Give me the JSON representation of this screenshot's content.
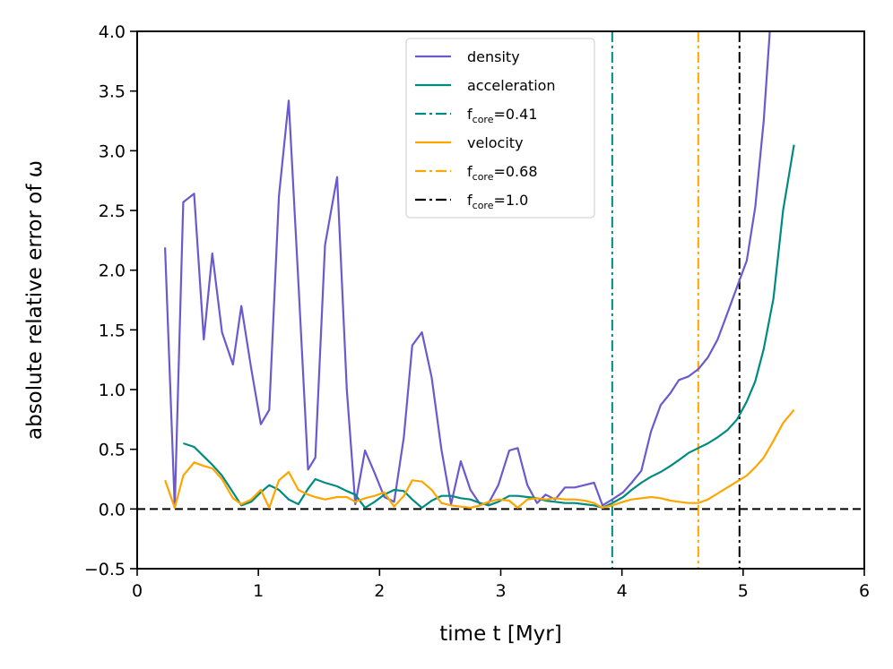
{
  "chart_data": {
    "type": "line",
    "title": "",
    "xlabel": "time t [Myr]",
    "ylabel": "absolute relative error of ω",
    "xlim": [
      0,
      6
    ],
    "ylim": [
      -0.5,
      4.0
    ],
    "xticks": [
      0,
      1,
      2,
      3,
      4,
      5,
      6
    ],
    "xtick_labels": [
      "0",
      "1",
      "2",
      "3",
      "4",
      "5",
      "6"
    ],
    "yticks": [
      -0.5,
      0.0,
      0.5,
      1.0,
      1.5,
      2.0,
      2.5,
      3.0,
      3.5,
      4.0
    ],
    "ytick_labels": [
      "−0.5",
      "0.0",
      "0.5",
      "1.0",
      "1.5",
      "2.0",
      "2.5",
      "3.0",
      "3.5",
      "4.0"
    ],
    "legend_position": "top-center",
    "series": [
      {
        "name": "density",
        "color": "#6a5acd",
        "x": [
          0.23,
          0.31,
          0.38,
          0.47,
          0.55,
          0.62,
          0.7,
          0.79,
          0.86,
          0.94,
          1.02,
          1.09,
          1.17,
          1.25,
          1.33,
          1.41,
          1.47,
          1.55,
          1.65,
          1.73,
          1.8,
          1.88,
          1.96,
          2.04,
          2.12,
          2.2,
          2.27,
          2.35,
          2.43,
          2.51,
          2.59,
          2.67,
          2.75,
          2.83,
          2.9,
          2.98,
          3.07,
          3.14,
          3.22,
          3.3,
          3.37,
          3.45,
          3.53,
          3.61,
          3.69,
          3.77,
          3.84,
          3.92,
          4.01,
          4.08,
          4.16,
          4.24,
          4.32,
          4.4,
          4.47,
          4.55,
          4.63,
          4.71,
          4.79,
          4.87,
          4.95,
          5.03,
          5.1,
          5.17,
          5.22
        ],
        "values": [
          2.19,
          0.01,
          2.57,
          2.64,
          1.42,
          2.14,
          1.48,
          1.21,
          1.7,
          1.18,
          0.71,
          0.83,
          2.62,
          3.42,
          1.9,
          0.33,
          0.43,
          2.21,
          2.78,
          1.0,
          0.04,
          0.49,
          0.3,
          0.1,
          0.06,
          0.6,
          1.37,
          1.48,
          1.1,
          0.5,
          0.04,
          0.4,
          0.16,
          0.04,
          0.05,
          0.2,
          0.49,
          0.51,
          0.2,
          0.05,
          0.12,
          0.08,
          0.18,
          0.18,
          0.2,
          0.22,
          0.03,
          0.08,
          0.14,
          0.22,
          0.32,
          0.65,
          0.87,
          0.97,
          1.08,
          1.11,
          1.17,
          1.27,
          1.42,
          1.64,
          1.86,
          2.08,
          2.53,
          3.25,
          4.0
        ]
      },
      {
        "name": "acceleration",
        "color": "#008b80",
        "x": [
          0.38,
          0.47,
          0.55,
          0.62,
          0.7,
          0.79,
          0.86,
          0.94,
          1.02,
          1.09,
          1.17,
          1.25,
          1.33,
          1.41,
          1.47,
          1.55,
          1.65,
          1.73,
          1.8,
          1.88,
          1.96,
          2.04,
          2.12,
          2.2,
          2.27,
          2.35,
          2.43,
          2.51,
          2.59,
          2.67,
          2.75,
          2.83,
          2.9,
          2.98,
          3.07,
          3.14,
          3.22,
          3.3,
          3.37,
          3.45,
          3.53,
          3.61,
          3.69,
          3.77,
          3.84,
          3.92,
          4.01,
          4.08,
          4.16,
          4.24,
          4.32,
          4.4,
          4.47,
          4.55,
          4.63,
          4.71,
          4.79,
          4.87,
          4.95,
          5.03,
          5.1,
          5.17,
          5.25,
          5.33,
          5.42
        ],
        "values": [
          0.55,
          0.52,
          0.44,
          0.37,
          0.28,
          0.14,
          0.03,
          0.06,
          0.14,
          0.2,
          0.16,
          0.08,
          0.04,
          0.17,
          0.25,
          0.22,
          0.19,
          0.15,
          0.12,
          0.01,
          0.06,
          0.12,
          0.16,
          0.15,
          0.08,
          0.01,
          0.07,
          0.11,
          0.11,
          0.09,
          0.08,
          0.05,
          0.03,
          0.06,
          0.11,
          0.11,
          0.1,
          0.09,
          0.07,
          0.06,
          0.05,
          0.05,
          0.04,
          0.03,
          0.01,
          0.05,
          0.1,
          0.16,
          0.22,
          0.27,
          0.31,
          0.36,
          0.41,
          0.47,
          0.51,
          0.55,
          0.6,
          0.66,
          0.75,
          0.9,
          1.07,
          1.34,
          1.76,
          2.5,
          3.05
        ]
      },
      {
        "name": "velocity",
        "color": "#ffa500",
        "x": [
          0.23,
          0.31,
          0.38,
          0.47,
          0.55,
          0.62,
          0.7,
          0.79,
          0.86,
          0.94,
          1.02,
          1.09,
          1.17,
          1.25,
          1.33,
          1.41,
          1.47,
          1.55,
          1.65,
          1.73,
          1.8,
          1.88,
          1.96,
          2.04,
          2.12,
          2.2,
          2.27,
          2.35,
          2.43,
          2.51,
          2.59,
          2.67,
          2.75,
          2.83,
          2.9,
          2.98,
          3.07,
          3.14,
          3.22,
          3.3,
          3.37,
          3.45,
          3.53,
          3.61,
          3.69,
          3.77,
          3.84,
          3.92,
          4.01,
          4.08,
          4.16,
          4.24,
          4.32,
          4.4,
          4.47,
          4.55,
          4.63,
          4.71,
          4.79,
          4.87,
          4.95,
          5.03,
          5.1,
          5.17,
          5.25,
          5.33,
          5.42
        ],
        "values": [
          0.24,
          0.01,
          0.28,
          0.39,
          0.36,
          0.34,
          0.25,
          0.09,
          0.04,
          0.08,
          0.16,
          0.01,
          0.24,
          0.31,
          0.16,
          0.12,
          0.1,
          0.08,
          0.1,
          0.1,
          0.06,
          0.09,
          0.11,
          0.14,
          0.02,
          0.11,
          0.24,
          0.23,
          0.16,
          0.05,
          0.03,
          0.02,
          0.01,
          0.03,
          0.06,
          0.08,
          0.07,
          0.01,
          0.08,
          0.09,
          0.08,
          0.09,
          0.08,
          0.08,
          0.07,
          0.05,
          0.01,
          0.03,
          0.06,
          0.08,
          0.09,
          0.1,
          0.09,
          0.07,
          0.06,
          0.05,
          0.05,
          0.08,
          0.13,
          0.18,
          0.23,
          0.28,
          0.35,
          0.43,
          0.57,
          0.72,
          0.83
        ]
      }
    ],
    "reference_lines": [
      {
        "orientation": "vertical",
        "x": 3.92,
        "name": "f_core=0.41",
        "color": "#008b80",
        "style": "dashdot"
      },
      {
        "orientation": "vertical",
        "x": 4.63,
        "name": "f_core=0.68",
        "color": "#ffa500",
        "style": "dashdot"
      },
      {
        "orientation": "vertical",
        "x": 4.97,
        "name": "f_core=1.0",
        "color": "#000000",
        "style": "dashdot"
      },
      {
        "orientation": "horizontal",
        "y": 0.0,
        "color": "#000000",
        "style": "dashed"
      }
    ],
    "legend": [
      {
        "label": "density",
        "color": "#6a5acd",
        "style": "solid"
      },
      {
        "label": "acceleration",
        "color": "#008b80",
        "style": "solid"
      },
      {
        "label": "f",
        "sub": "core",
        "value": "=0.41",
        "color": "#008b80",
        "style": "dashdot"
      },
      {
        "label": "velocity",
        "color": "#ffa500",
        "style": "solid"
      },
      {
        "label": "f",
        "sub": "core",
        "value": "=0.68",
        "color": "#ffa500",
        "style": "dashdot"
      },
      {
        "label": "f",
        "sub": "core",
        "value": "=1.0",
        "color": "#000000",
        "style": "dashdot"
      }
    ]
  }
}
